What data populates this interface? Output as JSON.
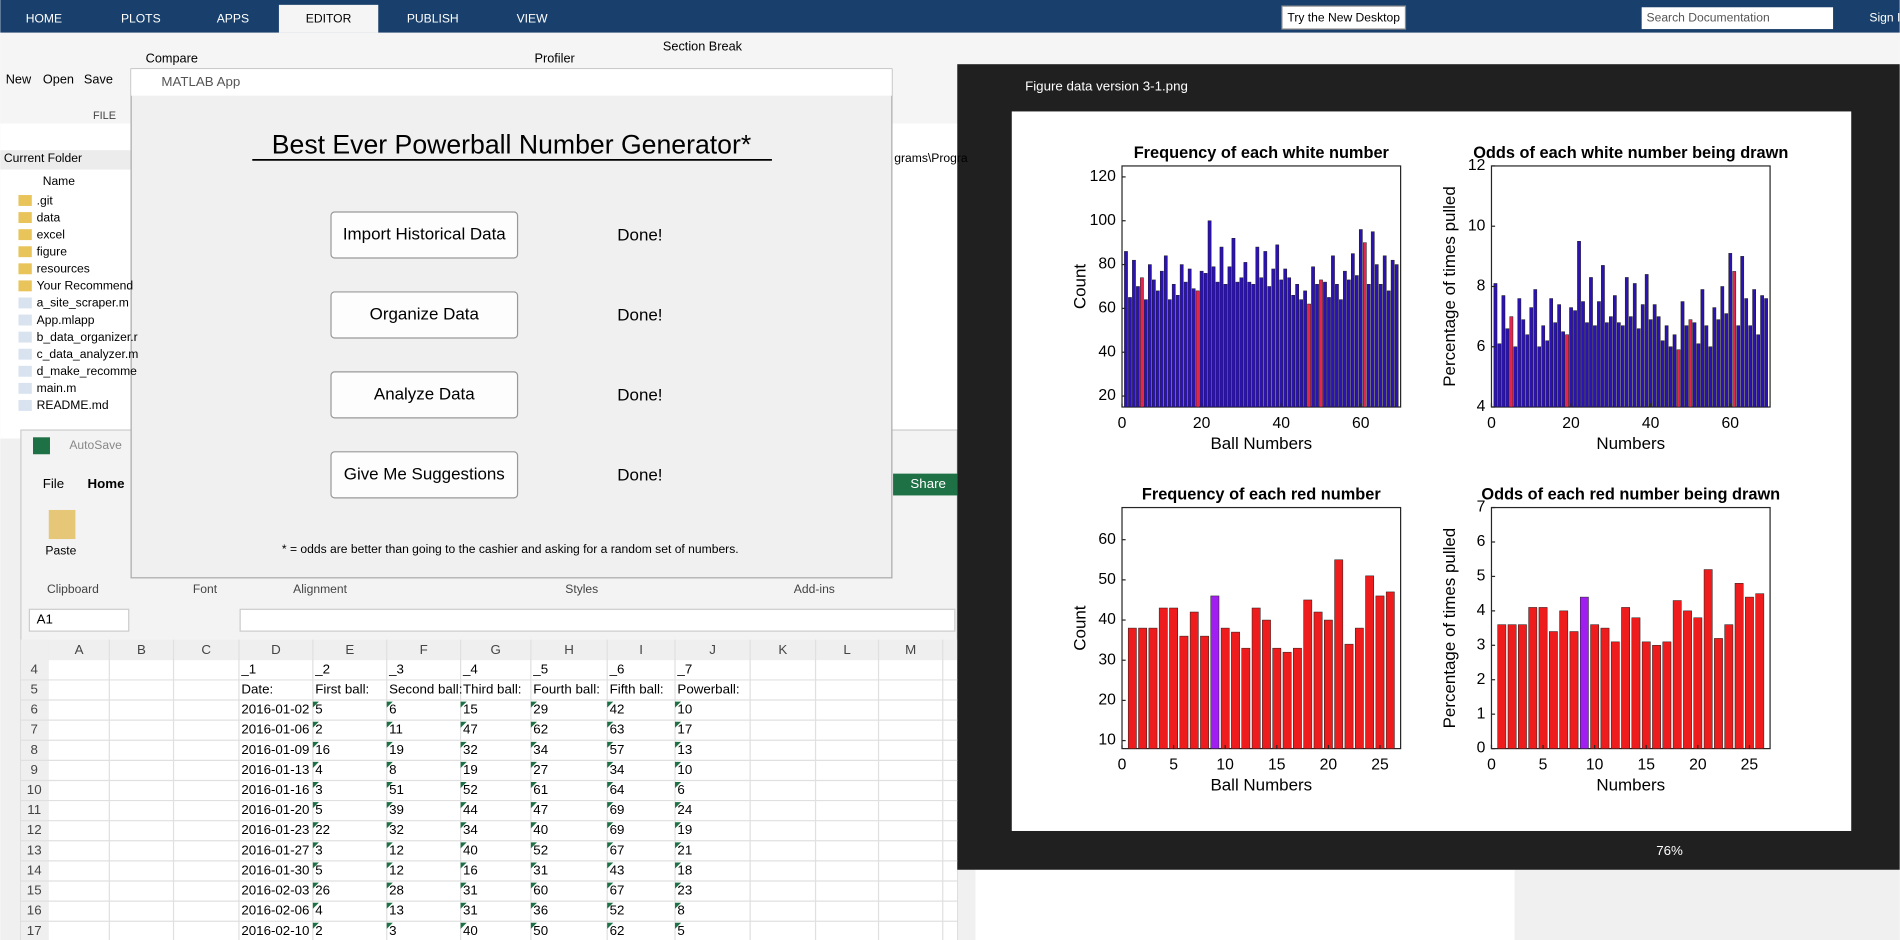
{
  "matlab": {
    "tabs": [
      "HOME",
      "PLOTS",
      "APPS",
      "EDITOR",
      "PUBLISH",
      "VIEW"
    ],
    "try_button": "Try the New Desktop",
    "search": "Search Documentation",
    "sign_in": "Sign In",
    "toolstrip": [
      "New",
      "Open",
      "Save",
      "Compare",
      "Profiler",
      "Section Break"
    ],
    "file_group": "FILE",
    "current_folder": "Current Folder",
    "name_header": "Name",
    "files": [
      ".git",
      "data",
      "excel",
      "figure",
      "resources",
      "Your Recommend",
      "a_site_scraper.m",
      "App.mlapp",
      "b_data_organizer.r",
      "c_data_analyzer.m",
      "d_make_recomme",
      "main.m",
      "README.md"
    ],
    "path_fragment": "grams\\Progra"
  },
  "app": {
    "window_title": "MATLAB App",
    "heading": "Best Ever Powerball Number Generator*",
    "buttons": [
      {
        "label": "Import Historical Data",
        "status": "Done!"
      },
      {
        "label": "Organize Data",
        "status": "Done!"
      },
      {
        "label": "Analyze Data",
        "status": "Done!"
      },
      {
        "label": "Give Me Suggestions",
        "status": "Done!"
      }
    ],
    "footnote": "* = odds are better than going to the cashier and asking for a random set of numbers."
  },
  "excel": {
    "autosave": "AutoSave",
    "tabs": [
      "File",
      "Home"
    ],
    "share": "Share",
    "paste": "Paste",
    "groups": [
      "Clipboard",
      "Font",
      "Alignment",
      "Styles",
      "Add-ins"
    ],
    "name_box": "A1",
    "columns": [
      "A",
      "B",
      "C",
      "D",
      "E",
      "F",
      "G",
      "H",
      "I",
      "J",
      "K",
      "L",
      "M"
    ],
    "rows": [
      {
        "number": 4,
        "cells": [
          "_1",
          "_2",
          "_3",
          "_4",
          "_5",
          "_6",
          "_7"
        ]
      },
      {
        "number": 5,
        "cells": [
          "Date:",
          "First ball:",
          "Second ball:",
          "Third ball:",
          "Fourth ball:",
          "Fifth ball:",
          "Powerball:"
        ]
      },
      {
        "number": 6,
        "cells": [
          "2016-01-02",
          5,
          6,
          15,
          29,
          42,
          10
        ]
      },
      {
        "number": 7,
        "cells": [
          "2016-01-06",
          2,
          11,
          47,
          62,
          63,
          17
        ]
      },
      {
        "number": 8,
        "cells": [
          "2016-01-09",
          16,
          19,
          32,
          34,
          57,
          13
        ]
      },
      {
        "number": 9,
        "cells": [
          "2016-01-13",
          4,
          8,
          19,
          27,
          34,
          10
        ]
      },
      {
        "number": 10,
        "cells": [
          "2016-01-16",
          3,
          51,
          52,
          61,
          64,
          6
        ]
      },
      {
        "number": 11,
        "cells": [
          "2016-01-20",
          5,
          39,
          44,
          47,
          69,
          24
        ]
      },
      {
        "number": 12,
        "cells": [
          "2016-01-23",
          22,
          32,
          34,
          40,
          69,
          19
        ]
      },
      {
        "number": 13,
        "cells": [
          "2016-01-27",
          3,
          12,
          40,
          52,
          67,
          21
        ]
      },
      {
        "number": 14,
        "cells": [
          "2016-01-30",
          5,
          12,
          16,
          31,
          43,
          18
        ]
      },
      {
        "number": 15,
        "cells": [
          "2016-02-03",
          26,
          28,
          31,
          60,
          67,
          23
        ]
      },
      {
        "number": 16,
        "cells": [
          "2016-02-06",
          4,
          13,
          31,
          36,
          52,
          8
        ]
      },
      {
        "number": 17,
        "cells": [
          "2016-02-10",
          2,
          3,
          40,
          50,
          62,
          5
        ]
      }
    ]
  },
  "viewer": {
    "title": "Figure data version 3-1.png",
    "zoom": "76%"
  },
  "chart_data": [
    {
      "type": "bar",
      "title": "Frequency of each white number",
      "xlabel": "Ball Numbers",
      "ylabel": "Count",
      "x": [
        1,
        2,
        3,
        4,
        5,
        6,
        7,
        8,
        9,
        10,
        11,
        12,
        13,
        14,
        15,
        16,
        17,
        18,
        19,
        20,
        21,
        22,
        23,
        24,
        25,
        26,
        27,
        28,
        29,
        30,
        31,
        32,
        33,
        34,
        35,
        36,
        37,
        38,
        39,
        40,
        41,
        42,
        43,
        44,
        45,
        46,
        47,
        48,
        49,
        50,
        51,
        52,
        53,
        54,
        55,
        56,
        57,
        58,
        59,
        60,
        61,
        62,
        63,
        64,
        65,
        66,
        67,
        68,
        69
      ],
      "values": [
        86,
        65,
        82,
        70,
        74,
        64,
        80,
        73,
        68,
        77,
        84,
        64,
        71,
        66,
        80,
        72,
        78,
        69,
        68,
        77,
        76,
        100,
        79,
        72,
        88,
        71,
        79,
        92,
        72,
        74,
        81,
        72,
        71,
        88,
        74,
        86,
        70,
        78,
        89,
        73,
        78,
        74,
        66,
        71,
        64,
        68,
        62,
        79,
        71,
        73,
        72,
        65,
        84,
        71,
        64,
        77,
        73,
        85,
        75,
        96,
        90,
        71,
        95,
        80,
        71,
        84,
        68,
        82,
        80
      ],
      "color": "#2b12b3",
      "highlight": [
        5,
        19,
        47,
        50,
        61
      ],
      "highlight_color": "#e3254f",
      "xlim": [
        0,
        70
      ],
      "xticks": [
        0,
        20,
        40,
        60
      ],
      "ylim": [
        15,
        125
      ],
      "yticks": [
        20,
        40,
        60,
        80,
        100,
        120
      ]
    },
    {
      "type": "bar",
      "title": "Odds of each white number being drawn",
      "xlabel": "Numbers",
      "ylabel": "Percentage of times pulled",
      "x": [
        1,
        2,
        3,
        4,
        5,
        6,
        7,
        8,
        9,
        10,
        11,
        12,
        13,
        14,
        15,
        16,
        17,
        18,
        19,
        20,
        21,
        22,
        23,
        24,
        25,
        26,
        27,
        28,
        29,
        30,
        31,
        32,
        33,
        34,
        35,
        36,
        37,
        38,
        39,
        40,
        41,
        42,
        43,
        44,
        45,
        46,
        47,
        48,
        49,
        50,
        51,
        52,
        53,
        54,
        55,
        56,
        57,
        58,
        59,
        60,
        61,
        62,
        63,
        64,
        65,
        66,
        67,
        68,
        69
      ],
      "values": [
        8.1,
        6.1,
        7.7,
        6.6,
        7.0,
        6.0,
        7.6,
        6.9,
        6.4,
        7.3,
        7.9,
        6.0,
        6.7,
        6.2,
        7.6,
        6.8,
        7.4,
        6.5,
        6.4,
        7.3,
        7.2,
        9.5,
        7.5,
        6.8,
        8.3,
        6.7,
        7.5,
        8.7,
        6.8,
        7.0,
        7.7,
        6.8,
        6.7,
        8.3,
        7.0,
        8.1,
        6.6,
        7.4,
        8.4,
        6.9,
        7.4,
        7.0,
        6.2,
        6.7,
        6.0,
        6.4,
        5.9,
        7.5,
        6.7,
        6.9,
        6.8,
        6.1,
        7.9,
        6.7,
        6.0,
        7.3,
        6.9,
        8.0,
        7.1,
        9.1,
        8.5,
        6.7,
        9.0,
        7.6,
        6.7,
        7.9,
        6.4,
        7.7,
        7.6
      ],
      "color": "#2b12b3",
      "highlight": [
        5,
        19,
        47,
        50,
        61
      ],
      "highlight_color": "#e3254f",
      "xlim": [
        0,
        70
      ],
      "xticks": [
        0,
        20,
        40,
        60
      ],
      "ylim": [
        4,
        12
      ],
      "yticks": [
        4,
        6,
        8,
        10,
        12
      ]
    },
    {
      "type": "bar",
      "title": "Frequency of each red number",
      "xlabel": "Ball Numbers",
      "ylabel": "Count",
      "x": [
        1,
        2,
        3,
        4,
        5,
        6,
        7,
        8,
        9,
        10,
        11,
        12,
        13,
        14,
        15,
        16,
        17,
        18,
        19,
        20,
        21,
        22,
        23,
        24,
        25,
        26
      ],
      "values": [
        38,
        38,
        38,
        43,
        43,
        36,
        42,
        36,
        46,
        38,
        37,
        33,
        43,
        40,
        33,
        32,
        33,
        45,
        42,
        40,
        55,
        34,
        38,
        51,
        46,
        47
      ],
      "color": "#ee1c1c",
      "highlight": [
        9
      ],
      "highlight_color": "#a11ef0",
      "xlim": [
        0,
        27
      ],
      "xticks": [
        0,
        5,
        10,
        15,
        20,
        25
      ],
      "ylim": [
        8,
        68
      ],
      "yticks": [
        10,
        20,
        30,
        40,
        50,
        60
      ]
    },
    {
      "type": "bar",
      "title": "Odds of each red number being drawn",
      "xlabel": "Numbers",
      "ylabel": "Percentage of times pulled",
      "x": [
        1,
        2,
        3,
        4,
        5,
        6,
        7,
        8,
        9,
        10,
        11,
        12,
        13,
        14,
        15,
        16,
        17,
        18,
        19,
        20,
        21,
        22,
        23,
        24,
        25,
        26
      ],
      "values": [
        3.6,
        3.6,
        3.6,
        4.1,
        4.1,
        3.4,
        4.0,
        3.4,
        4.4,
        3.6,
        3.5,
        3.1,
        4.1,
        3.8,
        3.1,
        3.0,
        3.1,
        4.3,
        4.0,
        3.8,
        5.2,
        3.2,
        3.6,
        4.8,
        4.4,
        4.5
      ],
      "color": "#ee1c1c",
      "highlight": [
        9
      ],
      "highlight_color": "#a11ef0",
      "xlim": [
        0,
        27
      ],
      "xticks": [
        0,
        5,
        10,
        15,
        20,
        25
      ],
      "ylim": [
        0,
        7
      ],
      "yticks": [
        0,
        1,
        2,
        3,
        4,
        5,
        6,
        7
      ]
    }
  ]
}
